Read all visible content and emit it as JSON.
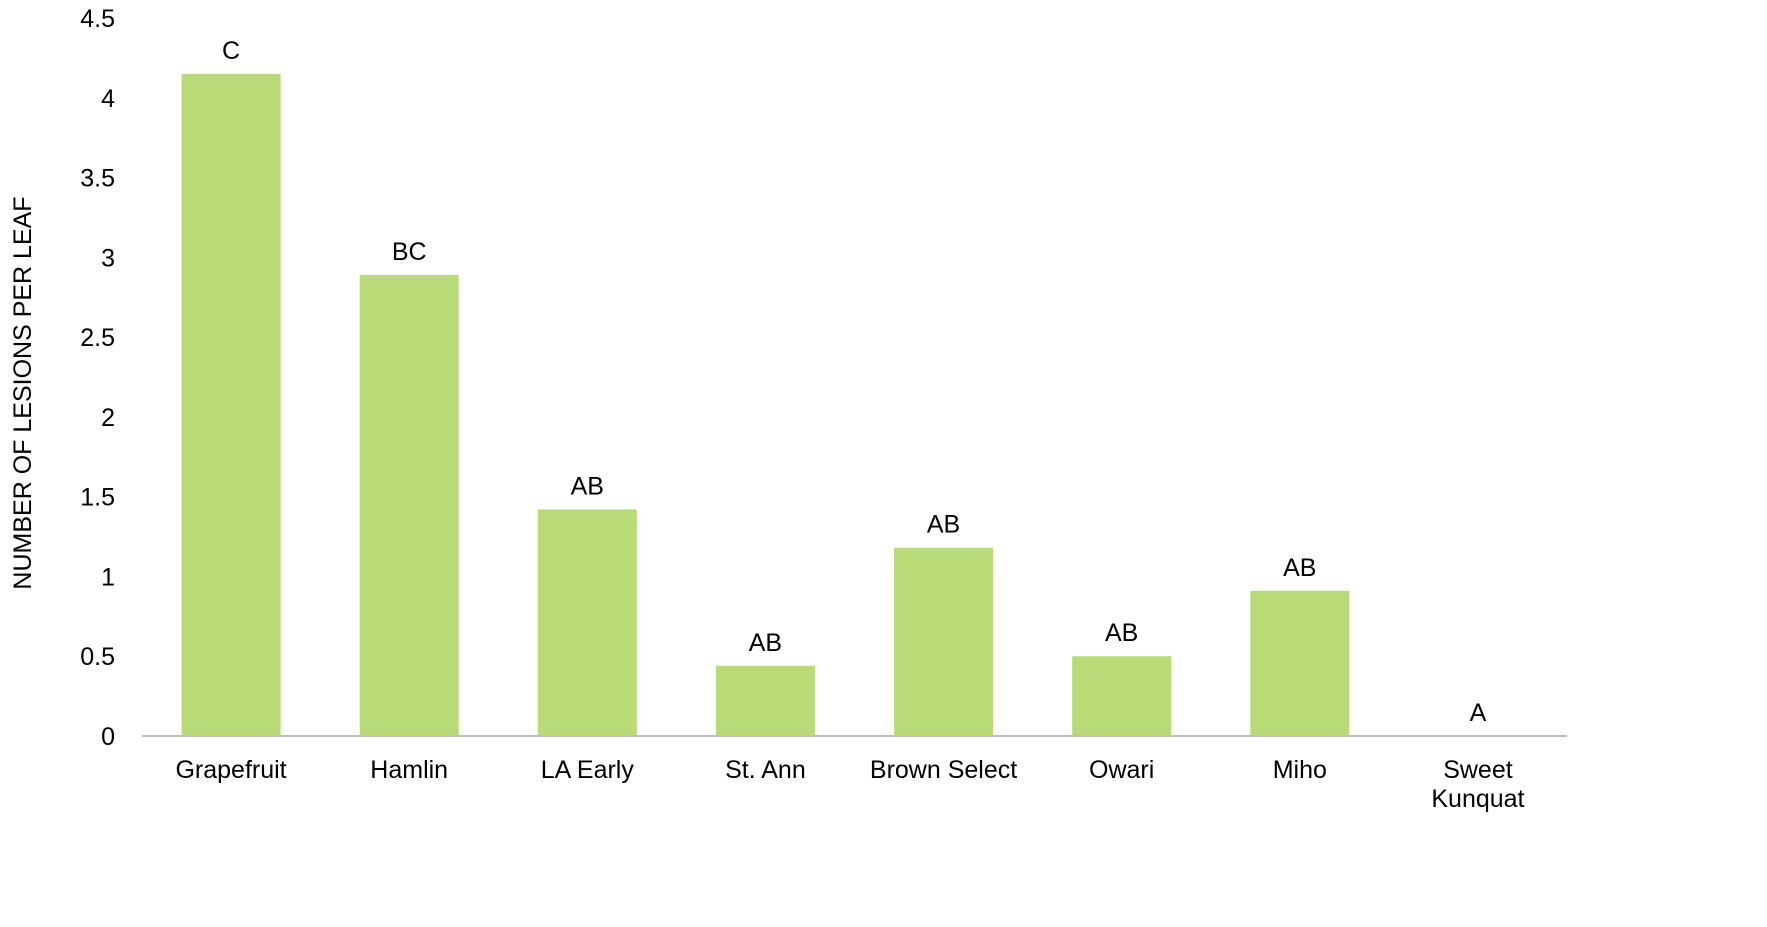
{
  "chart_data": {
    "type": "bar",
    "title": "",
    "xlabel": "",
    "ylabel": "NUMBER OF LESIONS PER LEAF",
    "ylim": [
      0,
      4.5
    ],
    "yticks": [
      "0",
      "0.5",
      "1",
      "1.5",
      "2",
      "2.5",
      "3",
      "3.5",
      "4",
      "4.5"
    ],
    "grid": false,
    "legend": "none",
    "bar_color": "#b8db78",
    "categories": [
      "Grapefruit",
      "Hamlin",
      "LA Early",
      "St. Ann",
      "Brown Select",
      "Owari",
      "Miho",
      "Sweet Kunquat"
    ],
    "values": [
      4.15,
      2.89,
      1.42,
      0.44,
      1.18,
      0.5,
      0.91,
      0
    ],
    "annotations": [
      "C",
      "BC",
      "AB",
      "AB",
      "AB",
      "AB",
      "AB",
      "A"
    ]
  }
}
